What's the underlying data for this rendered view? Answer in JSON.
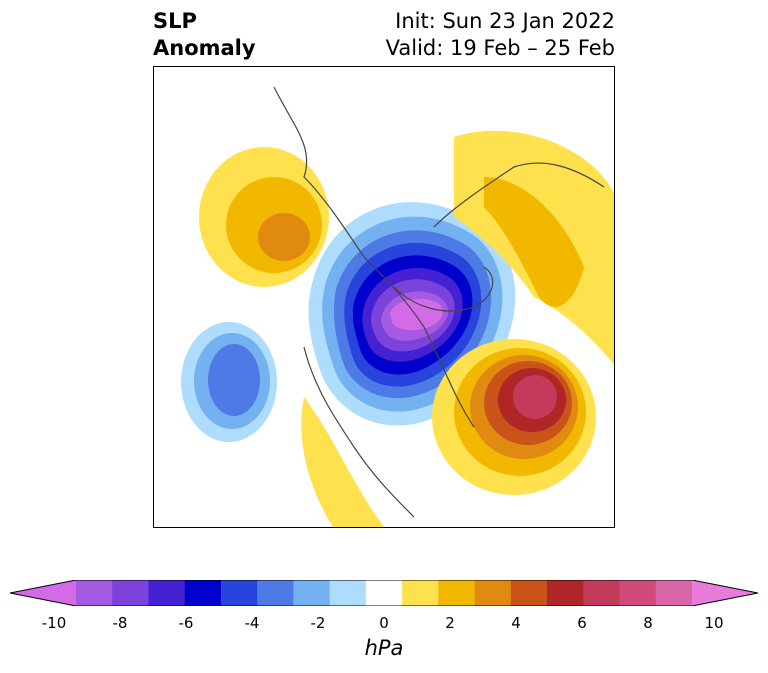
{
  "header": {
    "field_line1": "SLP",
    "field_line2": "Anomaly",
    "init": "Init: Sun 23 Jan 2022",
    "valid": "Valid: 19 Feb – 25 Feb"
  },
  "map": {
    "projection": "polar stereographic, North Hemisphere",
    "features": [
      {
        "name": "central-arctic-low",
        "sign": "negative",
        "peak_hpa": -10
      },
      {
        "name": "north-pacific-low",
        "sign": "negative",
        "peak_hpa": -5
      },
      {
        "name": "north-atlantic-high",
        "sign": "positive",
        "peak_hpa": 7
      },
      {
        "name": "siberia-high",
        "sign": "positive",
        "peak_hpa": 3
      },
      {
        "name": "eurasia-high",
        "sign": "positive",
        "peak_hpa": 2
      },
      {
        "name": "north-america-high",
        "sign": "positive",
        "peak_hpa": 1
      }
    ]
  },
  "colorbar": {
    "levels": [
      -10,
      -9,
      -8,
      -7,
      -6,
      -5,
      -4,
      -3,
      -2,
      -1,
      1,
      2,
      3,
      4,
      5,
      6,
      7,
      8,
      9,
      10
    ],
    "colors": [
      "#d36be7",
      "#a55ae2",
      "#7b42dc",
      "#4422d4",
      "#0000cc",
      "#2745dc",
      "#4e7ae6",
      "#74b1f0",
      "#aedcfc",
      "#ffffff",
      "#ffe14d",
      "#f2b800",
      "#e08a12",
      "#c95318",
      "#b02525",
      "#c43a5a",
      "#d04b7b",
      "#d967a8",
      "#e97bdb"
    ],
    "tick_labels": [
      "-10",
      "-8",
      "-6",
      "-4",
      "-2",
      "0",
      "2",
      "4",
      "6",
      "8",
      "10"
    ],
    "unit": "hPa"
  }
}
